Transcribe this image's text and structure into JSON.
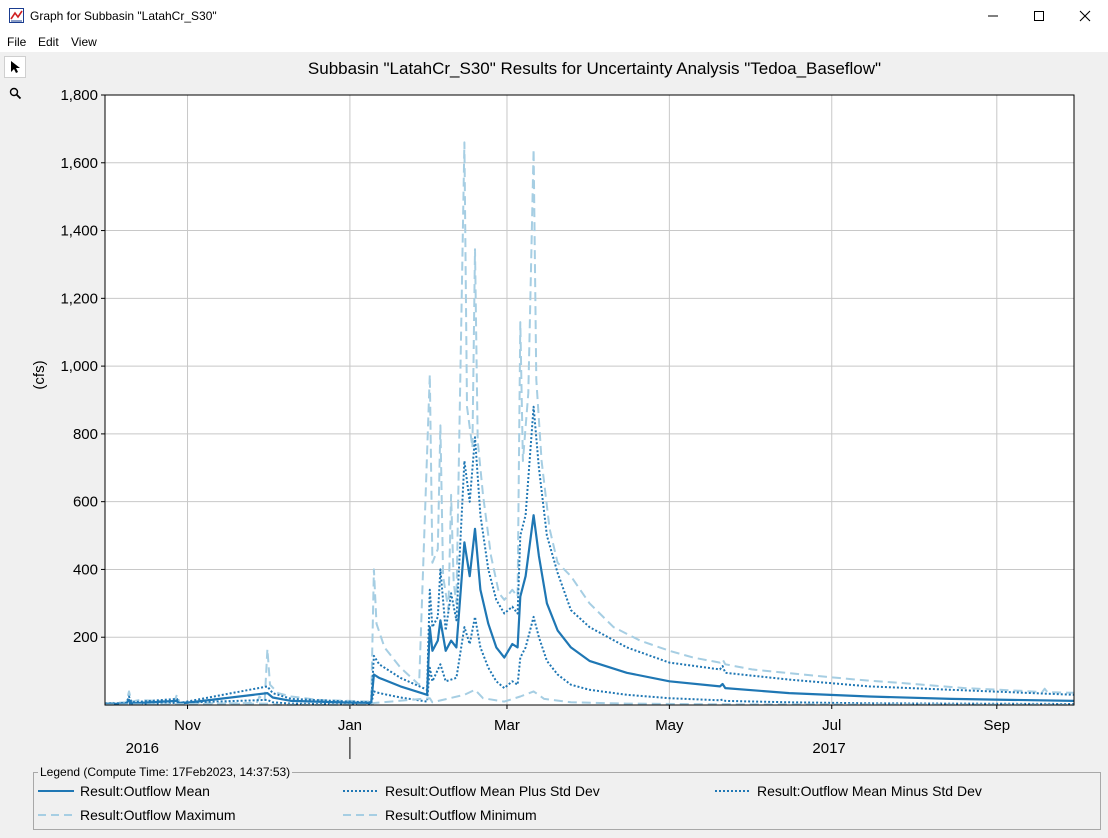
{
  "window": {
    "title": "Graph for Subbasin \"LatahCr_S30\""
  },
  "menu": [
    "File",
    "Edit",
    "View"
  ],
  "tools": [
    "pointer-tool",
    "zoom-tool"
  ],
  "legend": {
    "title": "Legend (Compute Time: 17Feb2023, 14:37:53)",
    "items": [
      {
        "label": "Result:Outflow Mean",
        "color": "#1f77b4",
        "dash": "solid"
      },
      {
        "label": "Result:Outflow Mean Plus Std Dev",
        "color": "#1f77b4",
        "dash": "dotted"
      },
      {
        "label": "Result:Outflow Mean Minus Std Dev",
        "color": "#1f77b4",
        "dash": "dotted"
      },
      {
        "label": "Result:Outflow Maximum",
        "color": "#a6cee3",
        "dash": "dashed"
      },
      {
        "label": "Result:Outflow Minimum",
        "color": "#a6cee3",
        "dash": "dashed"
      }
    ]
  },
  "chart_data": {
    "type": "line",
    "title": "Subbasin \"LatahCr_S30\" Results for Uncertainty Analysis \"Tedoa_Baseflow\"",
    "ylabel": "(cfs)",
    "xlabel": "",
    "ylim": [
      0,
      1800
    ],
    "yticks": [
      200,
      400,
      600,
      800,
      1000,
      1200,
      1400,
      1600,
      1800
    ],
    "ytick_labels": [
      "200",
      "400",
      "600",
      "800",
      "1,000",
      "1,200",
      "1,400",
      "1,600",
      "1,800"
    ],
    "xlim": [
      "2016-10-01",
      "2017-09-30"
    ],
    "xticks": [
      {
        "date": "2016-11-01",
        "label": "Nov"
      },
      {
        "date": "2017-01-01",
        "label": "Jan"
      },
      {
        "date": "2017-03-01",
        "label": "Mar"
      },
      {
        "date": "2017-05-01",
        "label": "May"
      },
      {
        "date": "2017-07-01",
        "label": "Jul"
      },
      {
        "date": "2017-09-01",
        "label": "Sep"
      }
    ],
    "year_labels": [
      {
        "label": "2016",
        "date": "2016-10-15"
      },
      {
        "label": "2017",
        "date": "2017-06-30"
      }
    ],
    "year_divider": "2017-01-01",
    "grid": true,
    "series": [
      {
        "name": "Result:Outflow Maximum",
        "color": "#a6cee3",
        "style": "dashed",
        "points": [
          [
            "2016-10-01",
            5
          ],
          [
            "2016-10-09",
            8
          ],
          [
            "2016-10-10",
            40
          ],
          [
            "2016-10-11",
            10
          ],
          [
            "2016-10-14",
            15
          ],
          [
            "2016-10-20",
            12
          ],
          [
            "2016-10-27",
            10
          ],
          [
            "2016-10-28",
            30
          ],
          [
            "2016-10-29",
            8
          ],
          [
            "2016-11-15",
            4
          ],
          [
            "2016-11-16",
            15
          ],
          [
            "2016-11-17",
            5
          ],
          [
            "2016-11-27",
            6
          ],
          [
            "2016-11-28",
            25
          ],
          [
            "2016-11-30",
            12
          ],
          [
            "2016-12-01",
            165
          ],
          [
            "2016-12-02",
            60
          ],
          [
            "2016-12-05",
            35
          ],
          [
            "2016-12-10",
            25
          ],
          [
            "2016-12-20",
            15
          ],
          [
            "2017-01-01",
            12
          ],
          [
            "2017-01-09",
            10
          ],
          [
            "2017-01-10",
            400
          ],
          [
            "2017-01-11",
            240
          ],
          [
            "2017-01-14",
            170
          ],
          [
            "2017-01-20",
            110
          ],
          [
            "2017-01-27",
            60
          ],
          [
            "2017-01-31",
            975
          ],
          [
            "2017-02-01",
            420
          ],
          [
            "2017-02-03",
            460
          ],
          [
            "2017-02-04",
            825
          ],
          [
            "2017-02-05",
            380
          ],
          [
            "2017-02-07",
            280
          ],
          [
            "2017-02-08",
            620
          ],
          [
            "2017-02-09",
            360
          ],
          [
            "2017-02-10",
            300
          ],
          [
            "2017-02-13",
            1660
          ],
          [
            "2017-02-14",
            880
          ],
          [
            "2017-02-16",
            760
          ],
          [
            "2017-02-17",
            1345
          ],
          [
            "2017-02-18",
            780
          ],
          [
            "2017-02-20",
            620
          ],
          [
            "2017-02-23",
            440
          ],
          [
            "2017-02-26",
            330
          ],
          [
            "2017-02-28",
            310
          ],
          [
            "2017-03-03",
            340
          ],
          [
            "2017-03-05",
            320
          ],
          [
            "2017-03-06",
            1130
          ],
          [
            "2017-03-07",
            720
          ],
          [
            "2017-03-09",
            920
          ],
          [
            "2017-03-11",
            1640
          ],
          [
            "2017-03-12",
            960
          ],
          [
            "2017-03-14",
            720
          ],
          [
            "2017-03-17",
            520
          ],
          [
            "2017-03-20",
            420
          ],
          [
            "2017-03-25",
            380
          ],
          [
            "2017-04-01",
            300
          ],
          [
            "2017-04-10",
            230
          ],
          [
            "2017-04-20",
            190
          ],
          [
            "2017-05-01",
            160
          ],
          [
            "2017-05-10",
            140
          ],
          [
            "2017-05-20",
            125
          ],
          [
            "2017-05-21",
            135
          ],
          [
            "2017-05-22",
            120
          ],
          [
            "2017-06-01",
            105
          ],
          [
            "2017-06-20",
            90
          ],
          [
            "2017-07-10",
            75
          ],
          [
            "2017-08-01",
            62
          ],
          [
            "2017-08-20",
            50
          ],
          [
            "2017-09-10",
            42
          ],
          [
            "2017-09-18",
            38
          ],
          [
            "2017-09-19",
            48
          ],
          [
            "2017-09-20",
            38
          ],
          [
            "2017-09-30",
            36
          ]
        ]
      },
      {
        "name": "Result:Outflow Mean Plus Std Dev",
        "color": "#1f77b4",
        "style": "dotted",
        "points": [
          [
            "2016-10-01",
            4
          ],
          [
            "2016-10-09",
            6
          ],
          [
            "2016-10-10",
            25
          ],
          [
            "2016-10-11",
            8
          ],
          [
            "2016-10-28",
            18
          ],
          [
            "2016-10-29",
            6
          ],
          [
            "2016-12-01",
            55
          ],
          [
            "2016-12-03",
            35
          ],
          [
            "2016-12-10",
            18
          ],
          [
            "2017-01-01",
            10
          ],
          [
            "2017-01-09",
            8
          ],
          [
            "2017-01-10",
            145
          ],
          [
            "2017-01-12",
            120
          ],
          [
            "2017-01-20",
            80
          ],
          [
            "2017-01-30",
            45
          ],
          [
            "2017-01-31",
            340
          ],
          [
            "2017-02-01",
            230
          ],
          [
            "2017-02-03",
            260
          ],
          [
            "2017-02-04",
            400
          ],
          [
            "2017-02-06",
            220
          ],
          [
            "2017-02-08",
            330
          ],
          [
            "2017-02-10",
            250
          ],
          [
            "2017-02-13",
            720
          ],
          [
            "2017-02-15",
            600
          ],
          [
            "2017-02-17",
            790
          ],
          [
            "2017-02-19",
            560
          ],
          [
            "2017-02-22",
            400
          ],
          [
            "2017-02-25",
            310
          ],
          [
            "2017-02-28",
            270
          ],
          [
            "2017-03-03",
            290
          ],
          [
            "2017-03-05",
            270
          ],
          [
            "2017-03-06",
            500
          ],
          [
            "2017-03-08",
            560
          ],
          [
            "2017-03-11",
            880
          ],
          [
            "2017-03-13",
            700
          ],
          [
            "2017-03-16",
            500
          ],
          [
            "2017-03-20",
            390
          ],
          [
            "2017-03-25",
            280
          ],
          [
            "2017-04-01",
            230
          ],
          [
            "2017-04-15",
            170
          ],
          [
            "2017-05-01",
            125
          ],
          [
            "2017-05-20",
            105
          ],
          [
            "2017-05-21",
            115
          ],
          [
            "2017-05-22",
            95
          ],
          [
            "2017-06-15",
            75
          ],
          [
            "2017-07-15",
            55
          ],
          [
            "2017-08-15",
            45
          ],
          [
            "2017-09-30",
            30
          ]
        ]
      },
      {
        "name": "Result:Outflow Mean",
        "color": "#1f77b4",
        "style": "solid",
        "points": [
          [
            "2016-10-01",
            3
          ],
          [
            "2016-10-09",
            4
          ],
          [
            "2016-10-10",
            15
          ],
          [
            "2016-10-11",
            5
          ],
          [
            "2016-10-28",
            12
          ],
          [
            "2016-10-29",
            4
          ],
          [
            "2016-12-01",
            35
          ],
          [
            "2016-12-03",
            22
          ],
          [
            "2016-12-10",
            12
          ],
          [
            "2017-01-01",
            7
          ],
          [
            "2017-01-09",
            6
          ],
          [
            "2017-01-10",
            90
          ],
          [
            "2017-01-12",
            80
          ],
          [
            "2017-01-20",
            55
          ],
          [
            "2017-01-30",
            30
          ],
          [
            "2017-01-31",
            230
          ],
          [
            "2017-02-01",
            160
          ],
          [
            "2017-02-03",
            190
          ],
          [
            "2017-02-04",
            250
          ],
          [
            "2017-02-06",
            160
          ],
          [
            "2017-02-08",
            190
          ],
          [
            "2017-02-10",
            170
          ],
          [
            "2017-02-13",
            480
          ],
          [
            "2017-02-15",
            380
          ],
          [
            "2017-02-17",
            520
          ],
          [
            "2017-02-19",
            340
          ],
          [
            "2017-02-22",
            240
          ],
          [
            "2017-02-25",
            170
          ],
          [
            "2017-02-28",
            140
          ],
          [
            "2017-03-03",
            180
          ],
          [
            "2017-03-05",
            170
          ],
          [
            "2017-03-06",
            320
          ],
          [
            "2017-03-08",
            380
          ],
          [
            "2017-03-11",
            560
          ],
          [
            "2017-03-13",
            440
          ],
          [
            "2017-03-16",
            300
          ],
          [
            "2017-03-20",
            220
          ],
          [
            "2017-03-25",
            170
          ],
          [
            "2017-04-01",
            130
          ],
          [
            "2017-04-15",
            95
          ],
          [
            "2017-05-01",
            70
          ],
          [
            "2017-05-20",
            55
          ],
          [
            "2017-05-21",
            62
          ],
          [
            "2017-05-22",
            50
          ],
          [
            "2017-06-15",
            35
          ],
          [
            "2017-07-15",
            25
          ],
          [
            "2017-08-15",
            18
          ],
          [
            "2017-09-30",
            12
          ]
        ]
      },
      {
        "name": "Result:Outflow Mean Minus Std Dev",
        "color": "#1f77b4",
        "style": "dotted",
        "points": [
          [
            "2016-10-01",
            2
          ],
          [
            "2016-10-10",
            6
          ],
          [
            "2016-10-11",
            2
          ],
          [
            "2016-12-01",
            15
          ],
          [
            "2016-12-03",
            8
          ],
          [
            "2016-12-10",
            4
          ],
          [
            "2017-01-01",
            2
          ],
          [
            "2017-01-09",
            2
          ],
          [
            "2017-01-10",
            40
          ],
          [
            "2017-01-12",
            35
          ],
          [
            "2017-01-20",
            22
          ],
          [
            "2017-01-30",
            10
          ],
          [
            "2017-01-31",
            110
          ],
          [
            "2017-02-01",
            70
          ],
          [
            "2017-02-04",
            120
          ],
          [
            "2017-02-06",
            70
          ],
          [
            "2017-02-10",
            80
          ],
          [
            "2017-02-13",
            230
          ],
          [
            "2017-02-15",
            180
          ],
          [
            "2017-02-17",
            260
          ],
          [
            "2017-02-19",
            170
          ],
          [
            "2017-02-22",
            110
          ],
          [
            "2017-02-25",
            70
          ],
          [
            "2017-02-28",
            50
          ],
          [
            "2017-03-03",
            70
          ],
          [
            "2017-03-05",
            60
          ],
          [
            "2017-03-06",
            140
          ],
          [
            "2017-03-08",
            170
          ],
          [
            "2017-03-11",
            260
          ],
          [
            "2017-03-13",
            200
          ],
          [
            "2017-03-16",
            130
          ],
          [
            "2017-03-20",
            90
          ],
          [
            "2017-03-25",
            60
          ],
          [
            "2017-04-01",
            45
          ],
          [
            "2017-04-15",
            30
          ],
          [
            "2017-05-01",
            20
          ],
          [
            "2017-05-20",
            14
          ],
          [
            "2017-05-21",
            16
          ],
          [
            "2017-05-22",
            12
          ],
          [
            "2017-06-15",
            8
          ],
          [
            "2017-07-15",
            5
          ],
          [
            "2017-08-15",
            4
          ],
          [
            "2017-09-30",
            3
          ]
        ]
      },
      {
        "name": "Result:Outflow Minimum",
        "color": "#a6cee3",
        "style": "dashed",
        "points": [
          [
            "2016-10-01",
            1
          ],
          [
            "2016-12-01",
            4
          ],
          [
            "2016-12-05",
            1
          ],
          [
            "2017-01-09",
            1
          ],
          [
            "2017-01-10",
            6
          ],
          [
            "2017-01-31",
            20
          ],
          [
            "2017-02-01",
            8
          ],
          [
            "2017-02-13",
            30
          ],
          [
            "2017-02-17",
            45
          ],
          [
            "2017-02-20",
            20
          ],
          [
            "2017-02-28",
            10
          ],
          [
            "2017-03-06",
            25
          ],
          [
            "2017-03-11",
            40
          ],
          [
            "2017-03-15",
            18
          ],
          [
            "2017-03-25",
            8
          ],
          [
            "2017-04-15",
            4
          ],
          [
            "2017-05-20",
            2
          ],
          [
            "2017-09-30",
            1
          ]
        ]
      }
    ]
  }
}
